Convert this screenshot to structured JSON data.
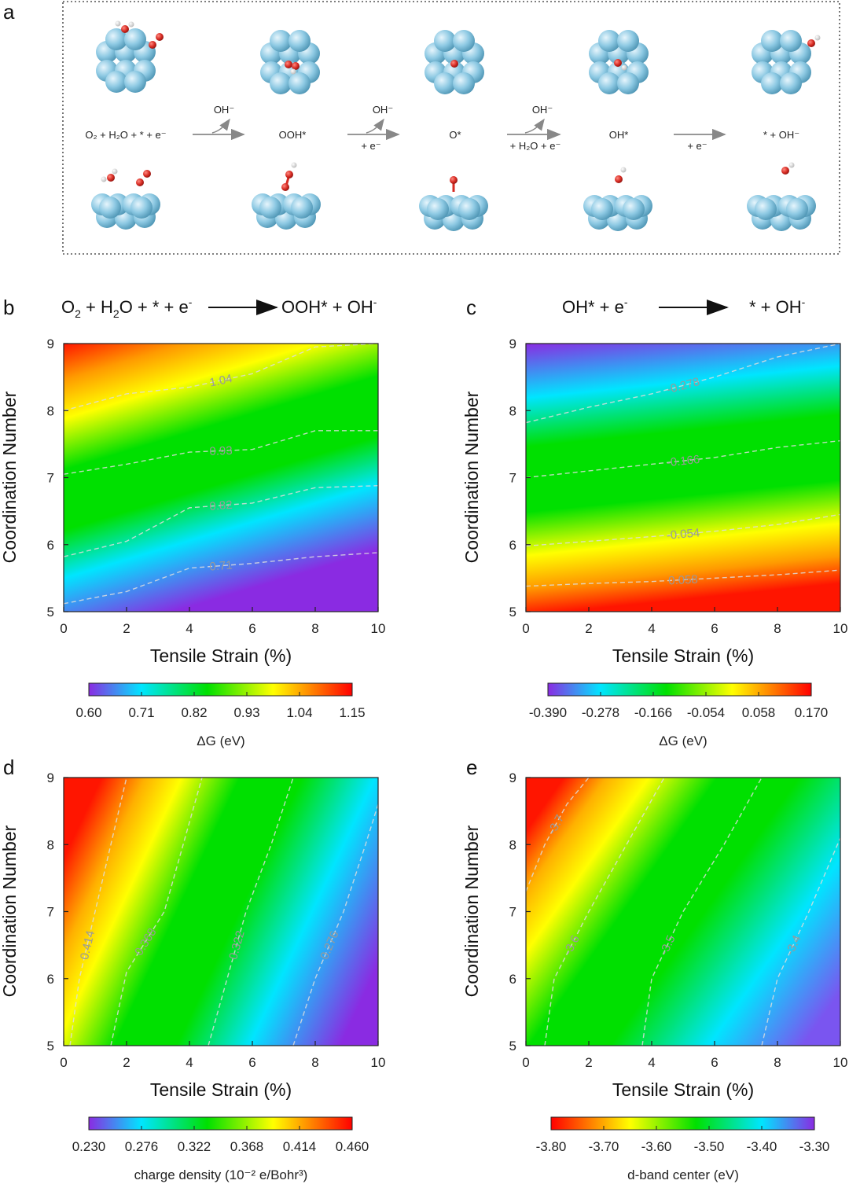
{
  "panel_a": {
    "label": "a",
    "steps": [
      {
        "name": "O₂ + H₂O + * + e⁻"
      },
      {
        "name": "OOH*"
      },
      {
        "name": "O*"
      },
      {
        "name": "OH*"
      },
      {
        "name": "* + OH⁻"
      }
    ],
    "arrows": [
      {
        "top": "OH⁻",
        "bottom": ""
      },
      {
        "top": "OH⁻",
        "bottom": "+ e⁻"
      },
      {
        "top": "OH⁻",
        "bottom": "+ H₂O + e⁻"
      },
      {
        "top": "",
        "bottom": "+ e⁻"
      }
    ],
    "colors": {
      "atom": "#8dc9e3",
      "oxygen": "#d62a22",
      "hydrogen": "#f2f2f2"
    }
  },
  "chart_data": [
    {
      "panel": "b",
      "type": "heatmap",
      "title": "O₂ + H₂O + * + e⁻ ⟶ OOH* + OH⁻",
      "xlabel": "Tensile Strain  (%)",
      "ylabel": "Coordination Number",
      "xlim": [
        0,
        10
      ],
      "ylim": [
        5,
        9
      ],
      "xticks": [
        "0",
        "2",
        "4",
        "6",
        "8",
        "10"
      ],
      "yticks": [
        "5",
        "6",
        "7",
        "8",
        "9"
      ],
      "colorbar": {
        "label": "ΔG (eV)",
        "min": 0.6,
        "max": 1.15,
        "reversed": false,
        "ticks": [
          "0.60",
          "0.71",
          "0.82",
          "0.93",
          "1.04",
          "1.15"
        ]
      },
      "contours": [
        {
          "label": "1.04",
          "x": [
            0,
            2,
            4,
            6,
            8,
            10
          ],
          "y": [
            8.0,
            8.25,
            8.35,
            8.55,
            8.95,
            9.15
          ]
        },
        {
          "label": "0.93",
          "x": [
            0,
            2,
            4,
            6,
            8,
            10
          ],
          "y": [
            7.05,
            7.2,
            7.38,
            7.42,
            7.7,
            7.7
          ]
        },
        {
          "label": "0.82",
          "x": [
            0,
            2,
            4,
            6,
            8,
            10
          ],
          "y": [
            5.82,
            6.05,
            6.55,
            6.62,
            6.85,
            6.88
          ]
        },
        {
          "label": "0.71",
          "x": [
            0,
            2,
            4,
            6,
            8,
            10
          ],
          "y": [
            5.12,
            5.3,
            5.65,
            5.72,
            5.82,
            5.88
          ]
        }
      ]
    },
    {
      "panel": "c",
      "type": "heatmap",
      "title": "OH* + e⁻ ⟶ * + OH⁻",
      "xlabel": "Tensile Strain  (%)",
      "ylabel": "Coordination Number",
      "xlim": [
        0,
        10
      ],
      "ylim": [
        5,
        9
      ],
      "xticks": [
        "0",
        "2",
        "4",
        "6",
        "8",
        "10"
      ],
      "yticks": [
        "5",
        "6",
        "7",
        "8",
        "9"
      ],
      "colorbar": {
        "label": "ΔG (eV)",
        "min": -0.39,
        "max": 0.17,
        "reversed": false,
        "ticks": [
          "-0.390",
          "-0.278",
          "-0.166",
          "-0.054",
          "0.058",
          "0.170"
        ]
      },
      "contours": [
        {
          "label": "-0.278",
          "x": [
            0,
            2,
            4,
            6,
            8,
            10
          ],
          "y": [
            7.82,
            8.05,
            8.25,
            8.5,
            8.8,
            9.1
          ]
        },
        {
          "label": "-0.166",
          "x": [
            0,
            2,
            4,
            6,
            8,
            10
          ],
          "y": [
            7.0,
            7.1,
            7.2,
            7.3,
            7.45,
            7.55
          ]
        },
        {
          "label": "-0.054",
          "x": [
            0,
            2,
            4,
            6,
            8,
            10
          ],
          "y": [
            5.98,
            6.05,
            6.12,
            6.2,
            6.3,
            6.45
          ]
        },
        {
          "label": "0.058",
          "x": [
            0,
            2,
            4,
            6,
            8,
            10
          ],
          "y": [
            5.38,
            5.42,
            5.45,
            5.5,
            5.55,
            5.62
          ]
        }
      ]
    },
    {
      "panel": "d",
      "type": "heatmap",
      "title": "",
      "xlabel": "Tensile Strain  (%)",
      "ylabel": "Coordination Number",
      "xlim": [
        0,
        10
      ],
      "ylim": [
        5,
        9
      ],
      "xticks": [
        "0",
        "2",
        "4",
        "6",
        "8",
        "10"
      ],
      "yticks": [
        "5",
        "6",
        "7",
        "8",
        "9"
      ],
      "colorbar": {
        "label": "charge density (10⁻² e/Bohr³)",
        "min": 0.23,
        "max": 0.46,
        "reversed": false,
        "ticks": [
          "0.230",
          "0.276",
          "0.322",
          "0.368",
          "0.414",
          "0.460"
        ]
      },
      "contours": [
        {
          "label": "0.414",
          "x": [
            0.2,
            0.5,
            1.0,
            1.5,
            2.0
          ],
          "y": [
            5,
            6,
            7,
            8,
            9
          ]
        },
        {
          "label": "0.368",
          "x": [
            1.5,
            2.0,
            3.2,
            3.8,
            4.4
          ],
          "y": [
            5,
            6.1,
            7.0,
            8.0,
            9
          ]
        },
        {
          "label": "0.322",
          "x": [
            4.6,
            5.2,
            5.8,
            6.6,
            7.3
          ],
          "y": [
            5,
            6,
            7,
            8,
            9
          ]
        },
        {
          "label": "0.276",
          "x": [
            7.3,
            8.0,
            8.9,
            9.6,
            10.0
          ],
          "y": [
            5,
            6,
            7,
            8,
            8.6
          ]
        }
      ]
    },
    {
      "panel": "e",
      "type": "heatmap",
      "title": "",
      "xlabel": "Tensile Strain  (%)",
      "ylabel": "Coordination Number",
      "xlim": [
        0,
        10
      ],
      "ylim": [
        5,
        9
      ],
      "xticks": [
        "0",
        "2",
        "4",
        "6",
        "8",
        "10"
      ],
      "yticks": [
        "5",
        "6",
        "7",
        "8",
        "9"
      ],
      "colorbar": {
        "label": "d-band center (eV)",
        "min": -3.8,
        "max": -3.3,
        "reversed": true,
        "ticks": [
          "-3.80",
          "-3.70",
          "-3.60",
          "-3.50",
          "-3.40",
          "-3.30"
        ]
      },
      "contours": [
        {
          "label": "-3.7",
          "x": [
            0.0,
            0.6,
            1.3,
            2.0
          ],
          "y": [
            7.3,
            8.0,
            8.6,
            9
          ]
        },
        {
          "label": "-3.6",
          "x": [
            0.6,
            0.9,
            2.0,
            3.2,
            4.4
          ],
          "y": [
            5,
            6,
            7,
            8,
            9
          ]
        },
        {
          "label": "-3.5",
          "x": [
            3.7,
            4.0,
            5.0,
            6.3,
            7.5
          ],
          "y": [
            5,
            6,
            7,
            8,
            9
          ]
        },
        {
          "label": "-3.4",
          "x": [
            7.5,
            8.0,
            9.0,
            10.0
          ],
          "y": [
            5,
            6,
            7,
            8.1
          ]
        }
      ]
    }
  ]
}
